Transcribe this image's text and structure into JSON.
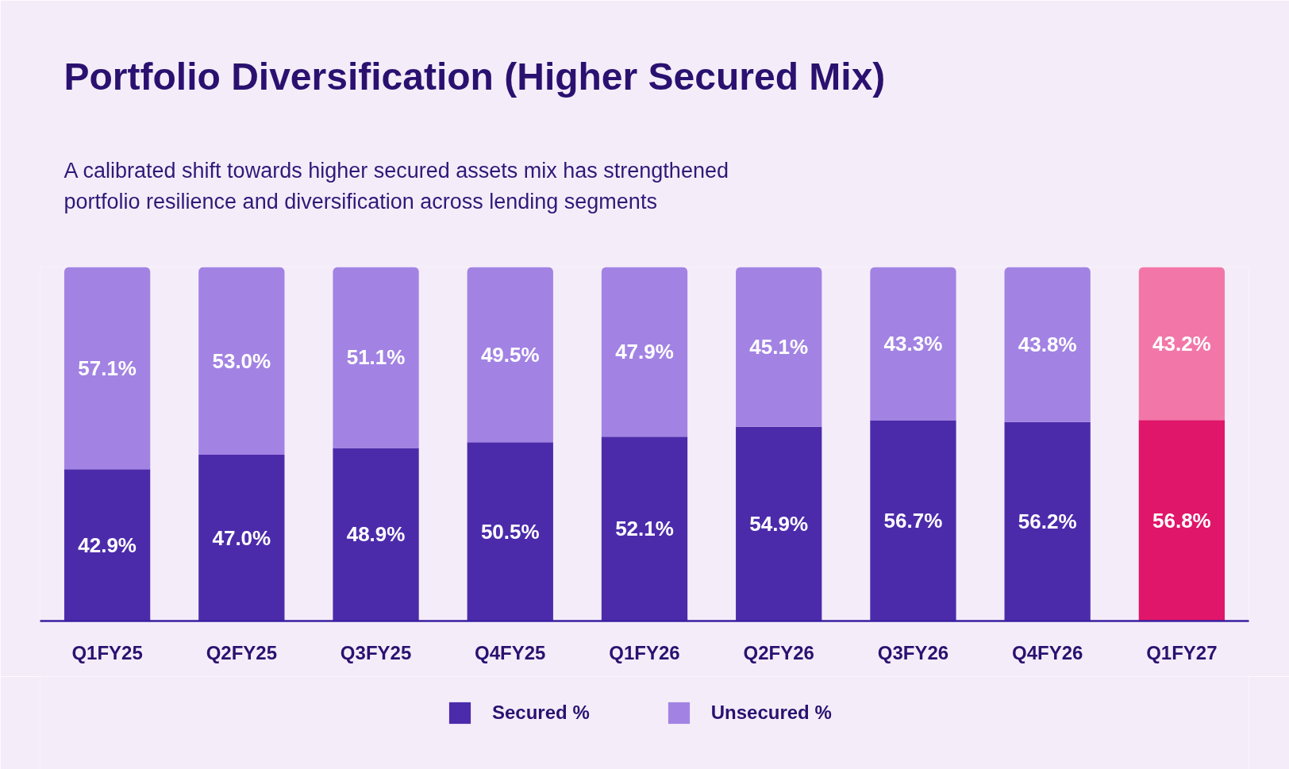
{
  "chart_data": {
    "type": "bar",
    "title": "Portfolio Diversification (Higher Secured Mix)",
    "subtitle": "A calibrated shift towards higher secured assets mix has strengthened\nportfolio resilience and diversification across lending segments",
    "categories": [
      "Q1FY25",
      "Q2FY25",
      "Q3FY25",
      "Q4FY25",
      "Q1FY26",
      "Q2FY26",
      "Q3FY26",
      "Q4FY26",
      "Q1FY27"
    ],
    "stacked": true,
    "ylim": [
      0,
      100
    ],
    "tick_labels": "x",
    "legend": "bottom",
    "series": [
      {
        "name": "Secured %",
        "color": "#4c2bab",
        "colors": [
          "#4c2bab",
          "#4c2bab",
          "#4c2bab",
          "#4c2bab",
          "#4c2bab",
          "#4c2bab",
          "#4c2bab",
          "#4c2bab",
          "#e0166a"
        ],
        "values": [
          42.9,
          47.0,
          48.9,
          50.5,
          52.1,
          54.9,
          56.7,
          56.2,
          56.8
        ],
        "value_labels": [
          "42.9%",
          "47.0%",
          "48.9%",
          "50.5%",
          "52.1%",
          "54.9%",
          "56.7%",
          "56.2%",
          "56.8%"
        ]
      },
      {
        "name": "Unsecured %",
        "color": "#a283e3",
        "colors": [
          "#a283e3",
          "#a283e3",
          "#a283e3",
          "#a283e3",
          "#a283e3",
          "#a283e3",
          "#a283e3",
          "#a283e3",
          "#f277a8"
        ],
        "values": [
          57.1,
          53.0,
          51.1,
          49.5,
          47.9,
          45.1,
          43.3,
          43.8,
          43.2
        ],
        "value_labels": [
          "57.1%",
          "53.0%",
          "51.1%",
          "49.5%",
          "47.9%",
          "45.1%",
          "43.3%",
          "43.8%",
          "43.2%"
        ]
      }
    ]
  }
}
